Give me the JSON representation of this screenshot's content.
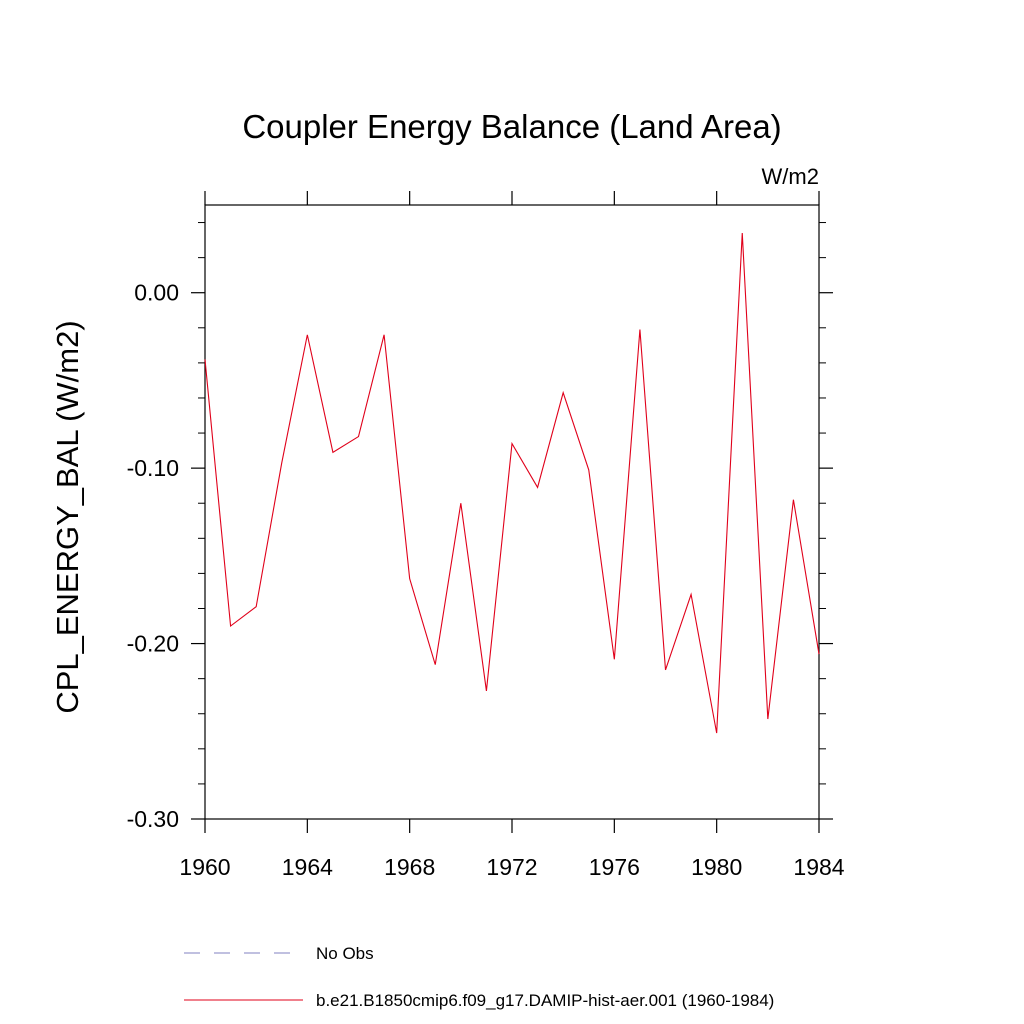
{
  "chart_data": {
    "type": "line",
    "title": "Coupler Energy Balance (Land Area)",
    "units_label": "W/m2",
    "ylabel": "CPL_ENERGY_BAL  (W/m2)",
    "xlabel": "",
    "xlim": [
      1960,
      1984
    ],
    "ylim": [
      -0.3,
      0.05
    ],
    "x_ticks": [
      1960,
      1964,
      1968,
      1972,
      1976,
      1980,
      1984
    ],
    "x_tick_labels": [
      "1960",
      "1964",
      "1968",
      "1972",
      "1976",
      "1980",
      "1984"
    ],
    "y_ticks": [
      -0.3,
      -0.2,
      -0.1,
      0.0
    ],
    "y_tick_labels": [
      "-0.30",
      "-0.20",
      "-0.10",
      "0.00"
    ],
    "grid": false,
    "legend_position": "bottom",
    "series": [
      {
        "name": "No Obs",
        "color": "#8080c0",
        "dash": "dashed",
        "x": [],
        "y": []
      },
      {
        "name": "b.e21.B1850cmip6.f09_g17.DAMIP-hist-aer.001 (1960-1984)",
        "color": "#e0001a",
        "dash": "solid",
        "x": [
          1960,
          1961,
          1962,
          1963,
          1964,
          1965,
          1966,
          1967,
          1968,
          1969,
          1970,
          1971,
          1972,
          1973,
          1974,
          1975,
          1976,
          1977,
          1978,
          1979,
          1980,
          1981,
          1982,
          1983,
          1984
        ],
        "y": [
          -0.038,
          -0.19,
          -0.179,
          -0.097,
          -0.024,
          -0.091,
          -0.082,
          -0.024,
          -0.163,
          -0.212,
          -0.12,
          -0.227,
          -0.086,
          -0.111,
          -0.057,
          -0.101,
          -0.209,
          -0.021,
          -0.215,
          -0.172,
          -0.251,
          0.034,
          -0.243,
          -0.118,
          -0.206
        ]
      }
    ]
  }
}
